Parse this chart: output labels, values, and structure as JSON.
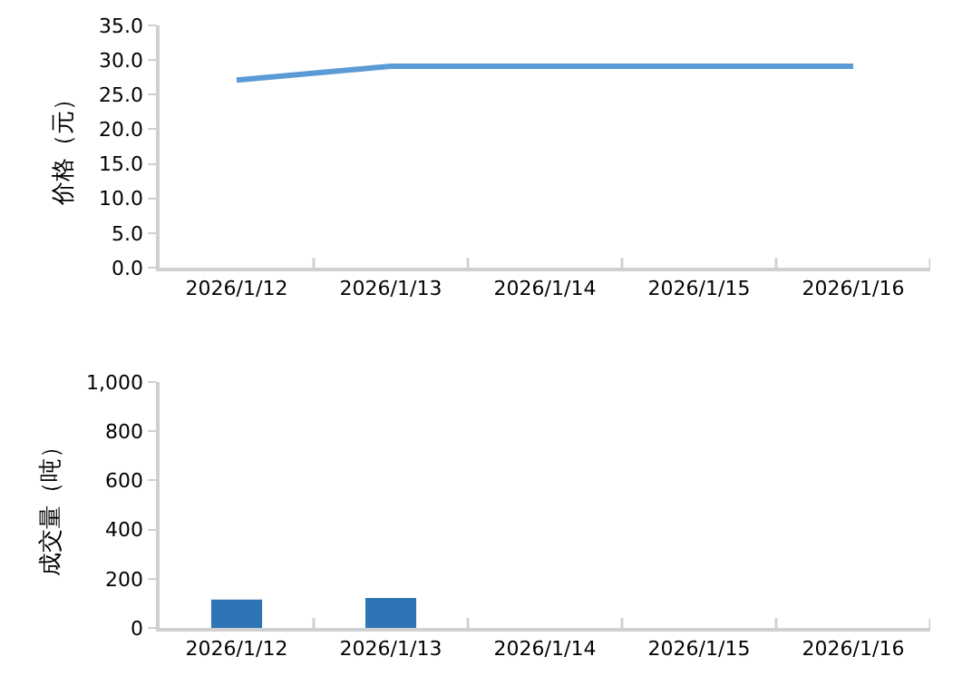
{
  "chart_data": [
    {
      "type": "line",
      "ylabel": "价格（元）",
      "categories": [
        "2026/1/12",
        "2026/1/13",
        "2026/1/14",
        "2026/1/15",
        "2026/1/16"
      ],
      "series": [
        {
          "color": "#5b9bd5",
          "values": [
            27.1,
            29.1,
            29.1,
            29.1,
            29.1
          ]
        }
      ],
      "ylim": [
        0,
        35
      ],
      "yticks": [
        {
          "value": 0,
          "label": "0.0"
        },
        {
          "value": 5,
          "label": "5.0"
        },
        {
          "value": 10,
          "label": "10.0"
        },
        {
          "value": 15,
          "label": "15.0"
        },
        {
          "value": 20,
          "label": "20.0"
        },
        {
          "value": 25,
          "label": "25.0"
        },
        {
          "value": 30,
          "label": "30.0"
        },
        {
          "value": 35,
          "label": "35.0"
        }
      ],
      "marker": "none",
      "line_style": "solid"
    },
    {
      "type": "bar",
      "ylabel": "成交量（吨）",
      "categories": [
        "2026/1/12",
        "2026/1/13",
        "2026/1/14",
        "2026/1/15",
        "2026/1/16"
      ],
      "series": [
        {
          "color": "#2e75b6",
          "values": [
            115,
            122,
            null,
            null,
            null
          ]
        }
      ],
      "ylim": [
        0,
        1000
      ],
      "yticks": [
        0,
        200,
        400,
        600,
        800,
        {
          "value": 1000,
          "label": "1,000"
        }
      ]
    }
  ]
}
